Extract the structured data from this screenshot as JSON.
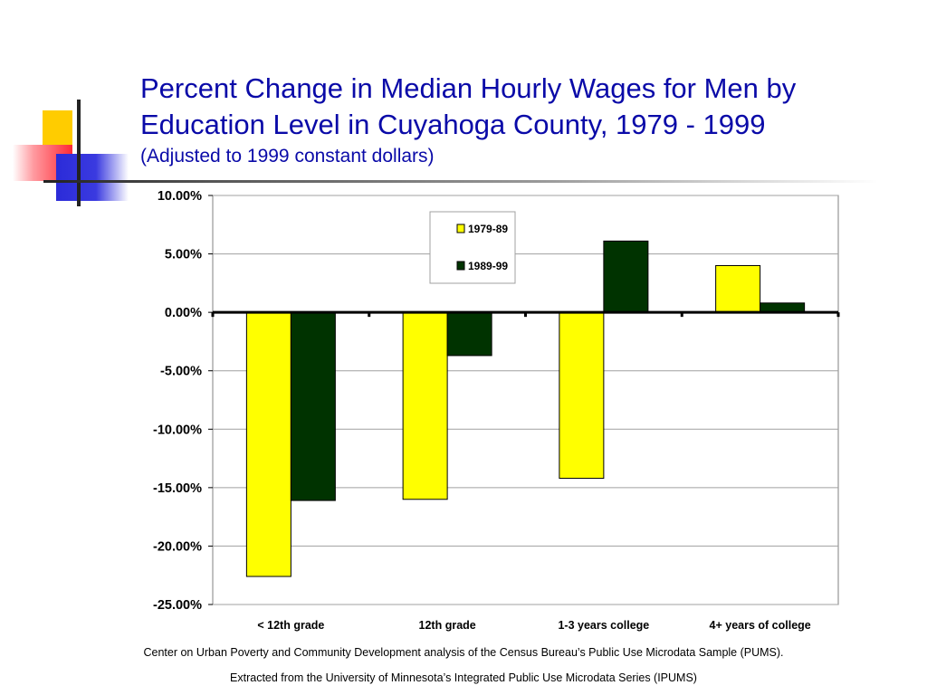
{
  "slide": {
    "title": "Percent Change in Median Hourly Wages for Men by Education Level in Cuyahoga County, 1979 - 1999",
    "subtitle": "(Adjusted to 1999 constant dollars)",
    "source_line_1": "Center on Urban Poverty and Community Development analysis of the Census Bureau’s Public Use Microdata Sample (PUMS).",
    "source_line_2": "Extracted from the University of Minnesota’s Integrated Public Use Microdata Series (IPUMS)"
  },
  "colors": {
    "title": "#0a0aa8",
    "series_1979": "#ffff00",
    "series_1989": "#003300",
    "gridline": "#a0a0a0"
  },
  "chart_data": {
    "type": "bar",
    "categories": [
      "< 12th grade",
      "12th grade",
      "1-3 years college",
      "4+ years of college"
    ],
    "series": [
      {
        "name": "1979-89",
        "values": [
          -22.6,
          -16.0,
          -14.2,
          4.0
        ]
      },
      {
        "name": "1989-99",
        "values": [
          -16.1,
          -3.7,
          6.1,
          0.8
        ]
      }
    ],
    "ylim": [
      -25,
      10
    ],
    "yticks": [
      10,
      5,
      0,
      -5,
      -10,
      -15,
      -20,
      -25
    ],
    "ytick_labels": [
      "10.00%",
      "5.00%",
      "0.00%",
      "-5.00%",
      "-10.00%",
      "-15.00%",
      "-20.00%",
      "-25.00%"
    ],
    "grid": true,
    "legend_position": "top-center",
    "xlabel": "",
    "ylabel": ""
  }
}
